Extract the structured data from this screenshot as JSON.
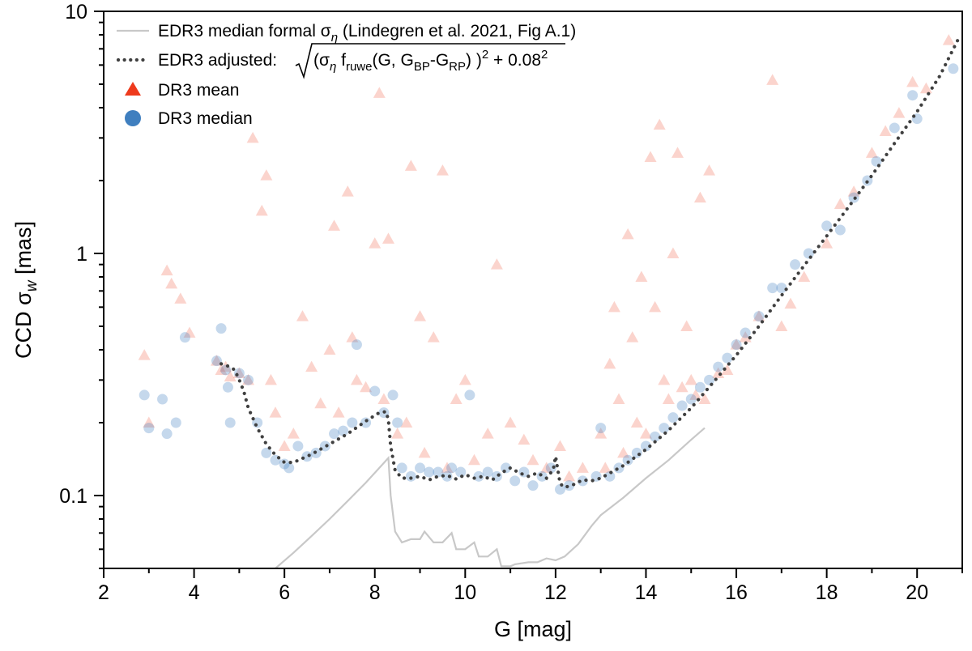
{
  "chart_data": {
    "type": "scatter",
    "title": "",
    "xlabel": "G [mag]",
    "ylabel_main": "CCD σ",
    "ylabel_sub": "w",
    "ylabel_unit": " [mas]",
    "xlim": [
      2,
      21
    ],
    "ylim": [
      0.05,
      10
    ],
    "yscale": "log",
    "x_ticks": [
      2,
      4,
      6,
      8,
      10,
      12,
      14,
      16,
      18,
      20
    ],
    "y_ticks": [
      0.1,
      1,
      10
    ],
    "y_tick_labels": [
      "0.1",
      "1",
      "10"
    ],
    "grid": false,
    "legend_position": "top-left",
    "legend": {
      "formal_text": "EDR3 median formal σ",
      "formal_sub": "η",
      "formal_ref": " (Lindegren et al. 2021, Fig A.1)",
      "adjusted_prefix": "EDR3 adjusted: ",
      "adjusted_f1": "(σ",
      "adjusted_f2": "η",
      "adjusted_f3": " f",
      "adjusted_f4": "ruwe",
      "adjusted_f5": "(G, G",
      "adjusted_f6": "BP",
      "adjusted_f7": "-G",
      "adjusted_f8": "RP",
      "adjusted_f9": ") )",
      "adjusted_f10": "2",
      "adjusted_f11": " + 0.08",
      "adjusted_f12": "2",
      "mean_text": "DR3 mean",
      "median_text": "DR3 median"
    },
    "colors": {
      "formal": "#c8c8c8",
      "adjusted": "#404040",
      "mean": "#ee3a1c",
      "median": "#3f7fbf"
    },
    "series": [
      {
        "name": "EDR3 median formal σ_η (Lindegren et al. 2021, Fig A.1)",
        "kind": "line",
        "x": [
          5.8,
          6.2,
          6.6,
          7.0,
          7.4,
          7.8,
          8.1,
          8.3,
          8.35,
          8.45,
          8.6,
          8.8,
          9.0,
          9.1,
          9.3,
          9.5,
          9.7,
          9.8,
          10.0,
          10.2,
          10.3,
          10.5,
          10.7,
          10.8,
          11.0,
          11.1,
          11.4,
          11.6,
          11.8,
          12.0,
          12.2,
          12.5,
          12.8,
          13.0,
          13.5,
          14.0,
          14.5,
          15.0,
          15.3
        ],
        "y": [
          0.05,
          0.058,
          0.068,
          0.08,
          0.095,
          0.113,
          0.13,
          0.143,
          0.1,
          0.071,
          0.064,
          0.066,
          0.066,
          0.071,
          0.064,
          0.064,
          0.07,
          0.06,
          0.06,
          0.064,
          0.056,
          0.056,
          0.06,
          0.051,
          0.051,
          0.052,
          0.053,
          0.053,
          0.055,
          0.054,
          0.056,
          0.063,
          0.075,
          0.083,
          0.098,
          0.118,
          0.14,
          0.17,
          0.19
        ]
      },
      {
        "name": "EDR3 adjusted: sqrt((σ_η f_ruwe(G, G_BP-G_RP))^2 + 0.08^2)",
        "kind": "dotted-line",
        "x": [
          4.6,
          4.8,
          4.9,
          5.0,
          5.1,
          5.2,
          5.4,
          5.6,
          5.8,
          6.0,
          6.2,
          6.6,
          7.0,
          7.4,
          7.8,
          8.1,
          8.25,
          8.3,
          8.35,
          8.45,
          8.6,
          8.8,
          9.0,
          9.2,
          9.4,
          9.6,
          9.8,
          10.0,
          10.2,
          10.4,
          10.6,
          10.8,
          11.0,
          11.2,
          11.4,
          11.6,
          11.8,
          11.95,
          12.0,
          12.1,
          12.2,
          12.4,
          12.6,
          12.8,
          13.0,
          13.5,
          14.0,
          14.5,
          15.0,
          15.5,
          16.0,
          16.5,
          17.0,
          17.5,
          18.0,
          18.5,
          19.0,
          19.5,
          20.0,
          20.5,
          20.9
        ],
        "y": [
          0.35,
          0.34,
          0.33,
          0.3,
          0.27,
          0.23,
          0.19,
          0.163,
          0.147,
          0.137,
          0.137,
          0.148,
          0.163,
          0.18,
          0.203,
          0.22,
          0.222,
          0.205,
          0.16,
          0.127,
          0.118,
          0.118,
          0.12,
          0.116,
          0.12,
          0.121,
          0.117,
          0.122,
          0.118,
          0.12,
          0.116,
          0.124,
          0.13,
          0.124,
          0.12,
          0.124,
          0.118,
          0.128,
          0.145,
          0.112,
          0.108,
          0.111,
          0.116,
          0.115,
          0.118,
          0.133,
          0.155,
          0.186,
          0.23,
          0.295,
          0.38,
          0.5,
          0.67,
          0.89,
          1.18,
          1.57,
          2.1,
          2.85,
          3.85,
          5.4,
          7.6
        ]
      },
      {
        "name": "DR3 mean",
        "kind": "triangle-scatter",
        "x": [
          2.9,
          3.0,
          3.4,
          3.5,
          3.7,
          3.9,
          4.5,
          4.6,
          4.7,
          4.8,
          5.0,
          5.2,
          5.3,
          5.5,
          5.6,
          5.7,
          5.8,
          6.0,
          6.2,
          6.4,
          6.6,
          6.8,
          7.0,
          7.1,
          7.2,
          7.4,
          7.5,
          7.6,
          7.8,
          8.0,
          8.1,
          8.2,
          8.3,
          8.5,
          8.7,
          8.8,
          9.0,
          9.1,
          9.3,
          9.5,
          9.6,
          9.8,
          10.0,
          10.2,
          10.5,
          10.7,
          11.0,
          11.3,
          11.5,
          11.8,
          12.1,
          12.3,
          12.6,
          13.0,
          13.1,
          13.2,
          13.3,
          13.4,
          13.5,
          13.6,
          13.7,
          13.8,
          13.9,
          14.0,
          14.1,
          14.2,
          14.3,
          14.4,
          14.5,
          14.6,
          14.7,
          14.8,
          14.9,
          15.0,
          15.1,
          15.2,
          15.3,
          15.4,
          15.6,
          15.8,
          16.0,
          16.2,
          16.5,
          16.8,
          17.0,
          17.2,
          17.5,
          18.0,
          18.3,
          18.6,
          19.0,
          19.3,
          19.6,
          19.9,
          20.2,
          20.7
        ],
        "y": [
          0.38,
          0.2,
          0.85,
          0.75,
          0.65,
          0.47,
          0.36,
          0.33,
          0.34,
          0.31,
          0.32,
          0.3,
          3.0,
          1.5,
          2.1,
          0.3,
          0.22,
          0.16,
          0.18,
          0.55,
          0.34,
          0.24,
          0.4,
          1.3,
          0.22,
          1.8,
          0.45,
          0.3,
          0.28,
          1.1,
          4.6,
          0.25,
          1.15,
          0.18,
          0.2,
          2.3,
          0.55,
          0.15,
          0.45,
          2.2,
          0.13,
          0.25,
          0.3,
          0.14,
          0.18,
          0.9,
          0.2,
          0.17,
          0.14,
          0.13,
          0.16,
          0.12,
          0.13,
          0.18,
          0.13,
          0.35,
          0.6,
          0.25,
          0.15,
          1.2,
          0.45,
          0.2,
          0.8,
          0.18,
          2.5,
          0.6,
          3.4,
          0.3,
          0.25,
          1.0,
          2.6,
          0.28,
          0.5,
          0.3,
          0.26,
          1.7,
          0.25,
          2.2,
          0.32,
          0.33,
          0.42,
          0.45,
          0.55,
          5.2,
          0.5,
          0.62,
          0.8,
          1.1,
          1.6,
          1.8,
          2.6,
          3.2,
          3.8,
          5.1,
          4.8,
          7.6
        ]
      },
      {
        "name": "DR3 median",
        "kind": "circle-scatter",
        "x": [
          2.9,
          3.0,
          3.3,
          3.4,
          3.6,
          3.8,
          4.5,
          4.6,
          4.7,
          4.75,
          4.8,
          5.0,
          5.2,
          5.4,
          5.6,
          5.8,
          6.0,
          6.1,
          6.3,
          6.5,
          6.7,
          6.9,
          7.1,
          7.3,
          7.5,
          7.6,
          7.8,
          8.0,
          8.2,
          8.4,
          8.5,
          8.6,
          8.8,
          9.0,
          9.2,
          9.4,
          9.6,
          9.7,
          9.9,
          10.1,
          10.3,
          10.5,
          10.7,
          10.9,
          11.1,
          11.3,
          11.5,
          11.7,
          11.9,
          12.1,
          12.3,
          12.6,
          12.9,
          13.0,
          13.2,
          13.4,
          13.6,
          13.8,
          14.0,
          14.2,
          14.4,
          14.6,
          14.8,
          15.0,
          15.2,
          15.4,
          15.6,
          15.8,
          16.0,
          16.2,
          16.5,
          16.8,
          17.0,
          17.3,
          17.6,
          18.0,
          18.3,
          18.6,
          18.9,
          19.1,
          19.5,
          19.9,
          20.0,
          20.8
        ],
        "y": [
          0.26,
          0.19,
          0.25,
          0.18,
          0.2,
          0.45,
          0.36,
          0.49,
          0.33,
          0.28,
          0.2,
          0.32,
          0.3,
          0.2,
          0.15,
          0.14,
          0.135,
          0.13,
          0.16,
          0.145,
          0.15,
          0.16,
          0.18,
          0.185,
          0.2,
          0.42,
          0.2,
          0.27,
          0.22,
          0.26,
          0.2,
          0.13,
          0.12,
          0.13,
          0.125,
          0.125,
          0.12,
          0.13,
          0.125,
          0.26,
          0.12,
          0.125,
          0.12,
          0.13,
          0.115,
          0.125,
          0.11,
          0.12,
          0.13,
          0.106,
          0.11,
          0.115,
          0.12,
          0.19,
          0.12,
          0.13,
          0.14,
          0.15,
          0.16,
          0.175,
          0.19,
          0.21,
          0.235,
          0.25,
          0.28,
          0.3,
          0.34,
          0.37,
          0.42,
          0.47,
          0.55,
          0.72,
          0.72,
          0.9,
          1.0,
          1.3,
          1.25,
          1.7,
          2.0,
          2.4,
          3.3,
          4.5,
          3.6,
          5.8
        ]
      }
    ]
  }
}
